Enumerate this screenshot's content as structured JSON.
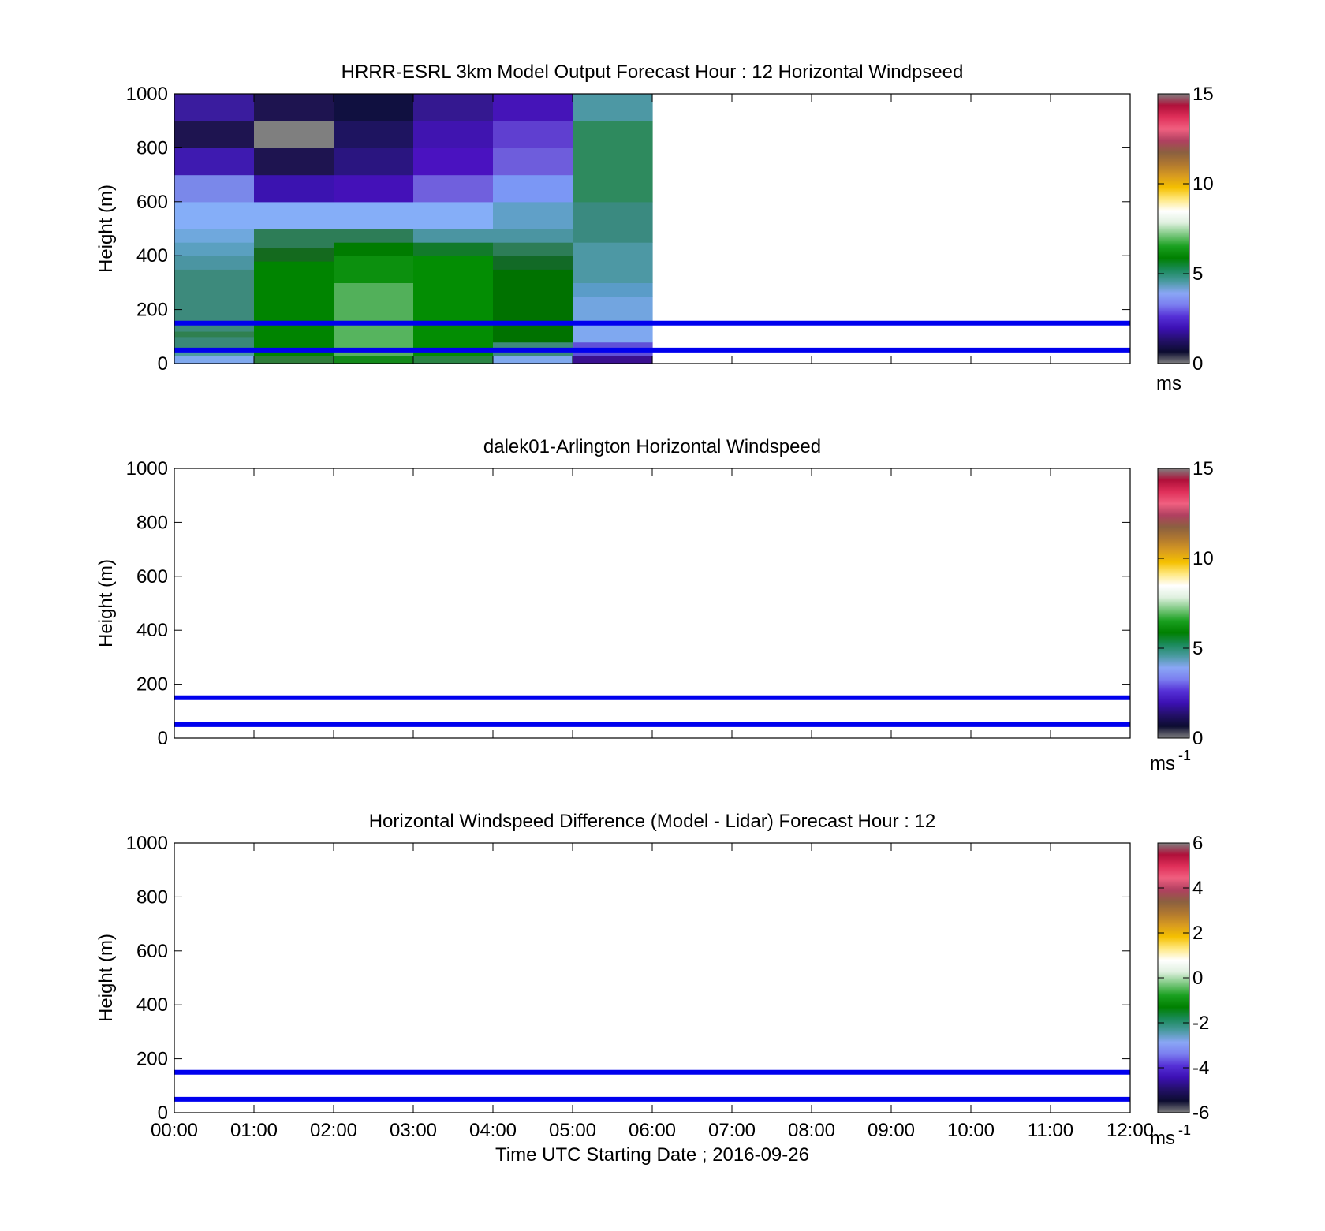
{
  "chart_data": [
    {
      "type": "heatmap",
      "title": "HRRR-ESRL 3km Model Output   Forecast Hour : 12 Horizontal Windpseed",
      "ylabel": "Height (m)",
      "xlabel": "",
      "ylim": [
        0,
        1000
      ],
      "yticks": [
        "0",
        "200",
        "400",
        "600",
        "800",
        "1000"
      ],
      "xlim_hours": [
        0,
        12
      ],
      "x_tick_labels": [],
      "colorbar": {
        "min": 0,
        "max": 15,
        "ticks": [
          "0",
          "5",
          "10",
          "15"
        ],
        "unit": "ms",
        "unit_sup": ""
      },
      "reference_lines_m": [
        50,
        150
      ],
      "reference_line_color": "#0000ee",
      "cells": [
        {
          "x": [
            0,
            1
          ],
          "y": [
            0,
            30
          ],
          "c": "#7fa8ee"
        },
        {
          "x": [
            0,
            1
          ],
          "y": [
            30,
            50
          ],
          "c": "#4d9aa0"
        },
        {
          "x": [
            0,
            1
          ],
          "y": [
            50,
            100
          ],
          "c": "#3a8878"
        },
        {
          "x": [
            0,
            1
          ],
          "y": [
            100,
            120
          ],
          "c": "#2f8050"
        },
        {
          "x": [
            0,
            1
          ],
          "y": [
            120,
            350
          ],
          "c": "#3d8a7c"
        },
        {
          "x": [
            0,
            1
          ],
          "y": [
            350,
            400
          ],
          "c": "#4b95a2"
        },
        {
          "x": [
            0,
            1
          ],
          "y": [
            400,
            450
          ],
          "c": "#5aa0c0"
        },
        {
          "x": [
            0,
            1
          ],
          "y": [
            450,
            500
          ],
          "c": "#6fa8dd"
        },
        {
          "x": [
            0,
            1
          ],
          "y": [
            500,
            600
          ],
          "c": "#85aef8"
        },
        {
          "x": [
            0,
            1
          ],
          "y": [
            600,
            700
          ],
          "c": "#7a88ea"
        },
        {
          "x": [
            0,
            1
          ],
          "y": [
            700,
            800
          ],
          "c": "#3e1ab0"
        },
        {
          "x": [
            0,
            1
          ],
          "y": [
            800,
            900
          ],
          "c": "#1e1450"
        },
        {
          "x": [
            0,
            1
          ],
          "y": [
            900,
            1000
          ],
          "c": "#3a1c9e"
        },
        {
          "x": [
            1,
            2
          ],
          "y": [
            0,
            30
          ],
          "c": "#2e7d3a"
        },
        {
          "x": [
            1,
            2
          ],
          "y": [
            30,
            380
          ],
          "c": "#008400"
        },
        {
          "x": [
            1,
            2
          ],
          "y": [
            380,
            430
          ],
          "c": "#146a1e"
        },
        {
          "x": [
            1,
            2
          ],
          "y": [
            430,
            500
          ],
          "c": "#2d7d57"
        },
        {
          "x": [
            1,
            2
          ],
          "y": [
            500,
            600
          ],
          "c": "#85aef8"
        },
        {
          "x": [
            1,
            2
          ],
          "y": [
            600,
            700
          ],
          "c": "#3b13b0"
        },
        {
          "x": [
            1,
            2
          ],
          "y": [
            700,
            800
          ],
          "c": "#1e1450"
        },
        {
          "x": [
            1,
            2
          ],
          "y": [
            800,
            900
          ],
          "c": "#7f7f7f"
        },
        {
          "x": [
            1,
            2
          ],
          "y": [
            900,
            1000
          ],
          "c": "#1e1450"
        },
        {
          "x": [
            2,
            3
          ],
          "y": [
            0,
            30
          ],
          "c": "#138a1a"
        },
        {
          "x": [
            2,
            3
          ],
          "y": [
            30,
            150
          ],
          "c": "#56b45e"
        },
        {
          "x": [
            2,
            3
          ],
          "y": [
            150,
            300
          ],
          "c": "#52b05a"
        },
        {
          "x": [
            2,
            3
          ],
          "y": [
            300,
            400
          ],
          "c": "#0c900e"
        },
        {
          "x": [
            2,
            3
          ],
          "y": [
            400,
            450
          ],
          "c": "#007c00"
        },
        {
          "x": [
            2,
            3
          ],
          "y": [
            450,
            500
          ],
          "c": "#2d7d57"
        },
        {
          "x": [
            2,
            3
          ],
          "y": [
            500,
            600
          ],
          "c": "#85aef8"
        },
        {
          "x": [
            2,
            3
          ],
          "y": [
            600,
            700
          ],
          "c": "#4411b8"
        },
        {
          "x": [
            2,
            3
          ],
          "y": [
            700,
            800
          ],
          "c": "#2a1580"
        },
        {
          "x": [
            2,
            3
          ],
          "y": [
            800,
            900
          ],
          "c": "#1e1460"
        },
        {
          "x": [
            2,
            3
          ],
          "y": [
            900,
            1000
          ],
          "c": "#101040"
        },
        {
          "x": [
            3,
            4
          ],
          "y": [
            0,
            30
          ],
          "c": "#2a8444"
        },
        {
          "x": [
            3,
            4
          ],
          "y": [
            30,
            400
          ],
          "c": "#038d03"
        },
        {
          "x": [
            3,
            4
          ],
          "y": [
            400,
            450
          ],
          "c": "#127a2a"
        },
        {
          "x": [
            3,
            4
          ],
          "y": [
            450,
            500
          ],
          "c": "#4b95a2"
        },
        {
          "x": [
            3,
            4
          ],
          "y": [
            500,
            600
          ],
          "c": "#85aef8"
        },
        {
          "x": [
            3,
            4
          ],
          "y": [
            600,
            700
          ],
          "c": "#7060dd"
        },
        {
          "x": [
            3,
            4
          ],
          "y": [
            700,
            800
          ],
          "c": "#4a12c0"
        },
        {
          "x": [
            3,
            4
          ],
          "y": [
            800,
            900
          ],
          "c": "#4014b0"
        },
        {
          "x": [
            3,
            4
          ],
          "y": [
            900,
            1000
          ],
          "c": "#341890"
        },
        {
          "x": [
            4,
            5
          ],
          "y": [
            0,
            30
          ],
          "c": "#7fa8ee"
        },
        {
          "x": [
            4,
            5
          ],
          "y": [
            30,
            80
          ],
          "c": "#3d8a7c"
        },
        {
          "x": [
            4,
            5
          ],
          "y": [
            80,
            350
          ],
          "c": "#007200"
        },
        {
          "x": [
            4,
            5
          ],
          "y": [
            350,
            400
          ],
          "c": "#126a26"
        },
        {
          "x": [
            4,
            5
          ],
          "y": [
            400,
            450
          ],
          "c": "#2d7d57"
        },
        {
          "x": [
            4,
            5
          ],
          "y": [
            450,
            500
          ],
          "c": "#4b95a2"
        },
        {
          "x": [
            4,
            5
          ],
          "y": [
            500,
            600
          ],
          "c": "#60a0c8"
        },
        {
          "x": [
            4,
            5
          ],
          "y": [
            600,
            700
          ],
          "c": "#7b97f5"
        },
        {
          "x": [
            4,
            5
          ],
          "y": [
            700,
            800
          ],
          "c": "#6e5ddc"
        },
        {
          "x": [
            4,
            5
          ],
          "y": [
            800,
            900
          ],
          "c": "#5f3fd0"
        },
        {
          "x": [
            4,
            5
          ],
          "y": [
            900,
            1000
          ],
          "c": "#4514b8"
        },
        {
          "x": [
            5,
            6
          ],
          "y": [
            0,
            30
          ],
          "c": "#3a1090"
        },
        {
          "x": [
            5,
            6
          ],
          "y": [
            30,
            80
          ],
          "c": "#6050d8"
        },
        {
          "x": [
            5,
            6
          ],
          "y": [
            80,
            150
          ],
          "c": "#7fa8f0"
        },
        {
          "x": [
            5,
            6
          ],
          "y": [
            150,
            250
          ],
          "c": "#72a5e0"
        },
        {
          "x": [
            5,
            6
          ],
          "y": [
            250,
            300
          ],
          "c": "#5a9cc8"
        },
        {
          "x": [
            5,
            6
          ],
          "y": [
            300,
            450
          ],
          "c": "#4d98a4"
        },
        {
          "x": [
            5,
            6
          ],
          "y": [
            450,
            600
          ],
          "c": "#3a8a80"
        },
        {
          "x": [
            5,
            6
          ],
          "y": [
            600,
            900
          ],
          "c": "#2e8a5e"
        },
        {
          "x": [
            5,
            6
          ],
          "y": [
            900,
            1000
          ],
          "c": "#4d98a4"
        }
      ]
    },
    {
      "type": "heatmap",
      "title": "dalek01-Arlington  Horizontal Windspeed",
      "ylabel": "Height (m)",
      "xlabel": "",
      "ylim": [
        0,
        1000
      ],
      "yticks": [
        "0",
        "200",
        "400",
        "600",
        "800",
        "1000"
      ],
      "xlim_hours": [
        0,
        12
      ],
      "x_tick_labels": [],
      "colorbar": {
        "min": 0,
        "max": 15,
        "ticks": [
          "0",
          "5",
          "10",
          "15"
        ],
        "unit": "ms",
        "unit_sup": "-1"
      },
      "reference_lines_m": [
        50,
        150
      ],
      "reference_line_color": "#0000ee",
      "cells": []
    },
    {
      "type": "heatmap",
      "title": "Horizontal Windspeed Difference (Model - Lidar) Forecast Hour : 12",
      "ylabel": "Height (m)",
      "xlabel": "Time UTC  Starting Date ; 2016-09-26",
      "ylim": [
        0,
        1000
      ],
      "yticks": [
        "0",
        "200",
        "400",
        "600",
        "800",
        "1000"
      ],
      "xlim_hours": [
        0,
        12
      ],
      "x_tick_labels": [
        "00:00",
        "01:00",
        "02:00",
        "03:00",
        "04:00",
        "05:00",
        "06:00",
        "07:00",
        "08:00",
        "09:00",
        "10:00",
        "11:00",
        "12:00"
      ],
      "colorbar": {
        "min": -6,
        "max": 6,
        "ticks": [
          "-6",
          "-4",
          "-2",
          "0",
          "2",
          "4",
          "6"
        ],
        "unit": "ms",
        "unit_sup": "-1"
      },
      "reference_lines_m": [
        50,
        150
      ],
      "reference_line_color": "#0000ee",
      "cells": []
    }
  ],
  "colormap": [
    "#808080",
    "#0c0c30",
    "#24106a",
    "#3c10b4",
    "#5530d6",
    "#7b7ef0",
    "#8aa6f5",
    "#4a9aa0",
    "#1a8a5a",
    "#008000",
    "#1aa020",
    "#7cc880",
    "#dff0df",
    "#ffffff",
    "#ffe880",
    "#f5c000",
    "#d89b20",
    "#b07830",
    "#8b6040",
    "#b04060",
    "#f06080",
    "#e0305a",
    "#b0103a",
    "#808080"
  ]
}
